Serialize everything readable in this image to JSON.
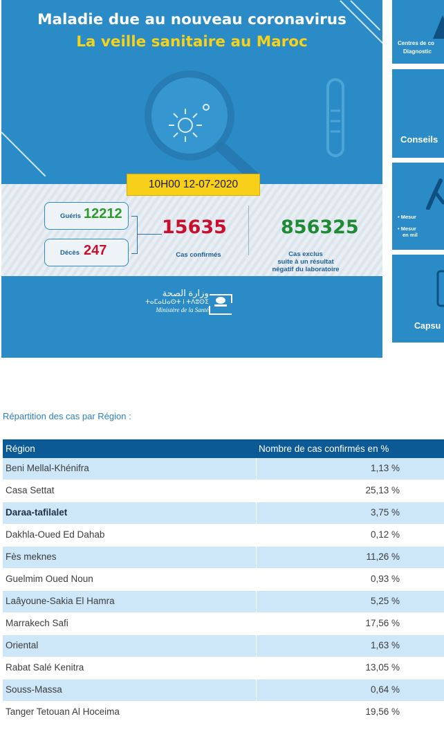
{
  "banner": {
    "title_line1": "Maladie due au nouveau coronavirus",
    "title_line2": "La veille sanitaire au Maroc",
    "datetime": "10H00  12-07-2020",
    "recovered_label": "Guéris",
    "recovered_value": "12212",
    "deaths_label": "Décès",
    "deaths_value": "247",
    "confirmed_value": "15635",
    "confirmed_label": "Cas confirmés",
    "excluded_value": "856325",
    "excluded_label_1": "Cas exclus",
    "excluded_label_2": "suite à un résultat",
    "excluded_label_3": "négatif du laboratoire",
    "ministry_ar": "وزارة الصحة",
    "ministry_tifinagh": "ⵜⴰⵎⴰⵡⴰⵙⵜ ⵏ ⵜⴷⵓⵙⵉ",
    "ministry_fr": "Ministère de la Santé",
    "colors": {
      "bg": "#2b8bc6",
      "title2": "#f7d21b",
      "recovered": "#2a9a2a",
      "deaths": "#c8102e",
      "excluded": "#1f8a35"
    }
  },
  "side_cards": [
    {
      "line1": "Centres de co",
      "line2": "Diagnostic"
    },
    {
      "line1": "Conseils"
    },
    {
      "line1": "• Mesur",
      "line2": "• Mesur",
      "line3": "en mil"
    },
    {
      "line1": "Capsu"
    }
  ],
  "table": {
    "caption": "Répartition des cas par Région :",
    "headers": [
      "Région",
      "Nombre de cas confirmés en %"
    ],
    "rows": [
      {
        "region": "Beni Mellal-Khénifra",
        "value": "1,13 %"
      },
      {
        "region": "Casa Settat",
        "value": "25,13 %"
      },
      {
        "region": "Daraa-tafilalet",
        "value": "3,75 %"
      },
      {
        "region": "Dakhla-Oued Ed Dahab",
        "value": "0,12 %"
      },
      {
        "region": "Fès meknes",
        "value": "11,26 %"
      },
      {
        "region": "Guelmim Oued Noun",
        "value": "0,93 %"
      },
      {
        "region": "Laâyoune-Sakia El Hamra",
        "value": "5,25 %"
      },
      {
        "region": "Marrakech Safi",
        "value": "17,56 %"
      },
      {
        "region": "Oriental",
        "value": "1,63 %"
      },
      {
        "region": "Rabat Salé Kenitra",
        "value": "13,05 %"
      },
      {
        "region": "Souss-Massa",
        "value": "0,64 %"
      },
      {
        "region": "Tanger Tetouan Al Hoceima",
        "value": "19,56 %"
      }
    ]
  }
}
